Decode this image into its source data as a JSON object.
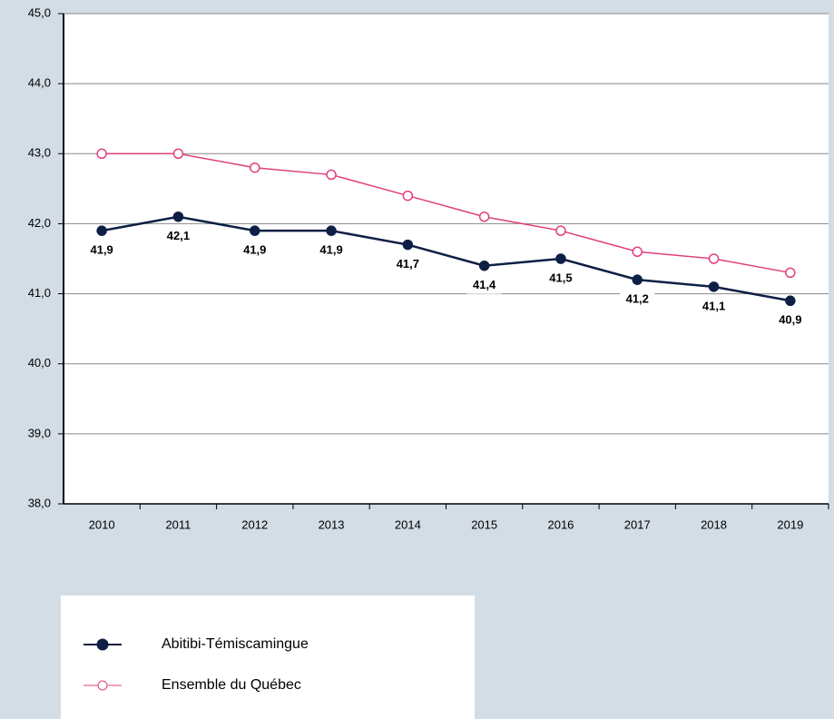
{
  "chart_data": {
    "type": "line",
    "categories": [
      "2010",
      "2011",
      "2012",
      "2013",
      "2014",
      "2015",
      "2016",
      "2017",
      "2018",
      "2019"
    ],
    "series": [
      {
        "name": "Abitibi-Témiscamingue",
        "color": "#0d1f45",
        "marker": "filled",
        "values": [
          41.9,
          42.1,
          41.9,
          41.9,
          41.7,
          41.4,
          41.5,
          41.2,
          41.1,
          40.9
        ],
        "value_labels": [
          "41,9",
          "42,1",
          "41,9",
          "41,9",
          "41,7",
          "41,4",
          "41,5",
          "41,2",
          "41,1",
          "40,9"
        ]
      },
      {
        "name": "Ensemble du Québec",
        "color": "#e0407f",
        "marker": "hollow",
        "values": [
          43.0,
          43.0,
          42.8,
          42.7,
          42.4,
          42.1,
          41.9,
          41.6,
          41.5,
          41.3
        ]
      }
    ],
    "ylim": [
      38,
      45
    ],
    "yticks": [
      {
        "value": 38,
        "label": "38,0"
      },
      {
        "value": 39,
        "label": "39,0"
      },
      {
        "value": 40,
        "label": "40,0"
      },
      {
        "value": 41,
        "label": "41,0"
      },
      {
        "value": 42,
        "label": "42,0"
      },
      {
        "value": 43,
        "label": "43,0"
      },
      {
        "value": 44,
        "label": "44,0"
      },
      {
        "value": 45,
        "label": "45,0"
      }
    ],
    "grid": true
  }
}
